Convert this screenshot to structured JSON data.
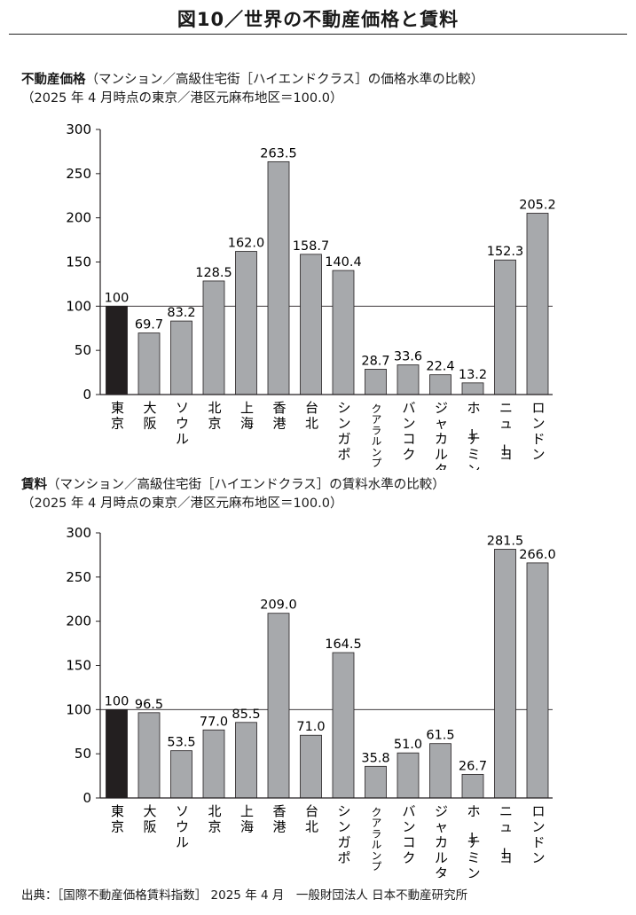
{
  "figure_title": "図10／世界の不動産価格と賃料",
  "source": "出典：［国際不動産価格賃料指数］ 2025 年 4 月　一般財団法人 日本不動産研究所",
  "colors": {
    "highlight_bar": "#231f20",
    "bar": "#a7a9ac",
    "axis": "#231f20",
    "reference_line": "#231f20"
  },
  "chart_data": [
    {
      "type": "bar",
      "title_lead": "不動産価格",
      "title_rest": "（マンション／高級住宅街［ハイエンドクラス］の価格水準の比較）",
      "subtitle": "（2025 年 4 月時点の東京／港区元麻布地区＝100.0）",
      "categories": [
        "東京",
        "大阪",
        "ソウル",
        "北京",
        "上海",
        "香港",
        "台北",
        "シンガポール",
        "クアラルンプール",
        "バンコク",
        "ジャカルタ",
        "ホーチミン",
        "ニューヨーク",
        "ロンドン"
      ],
      "value_labels": [
        "100",
        "69.7",
        "83.2",
        "128.5",
        "162.0",
        "263.5",
        "158.7",
        "140.4",
        "28.7",
        "33.6",
        "22.4",
        "13.2",
        "152.3",
        "205.2"
      ],
      "values": [
        100,
        69.7,
        83.2,
        128.5,
        162.0,
        263.5,
        158.7,
        140.4,
        28.7,
        33.6,
        22.4,
        13.2,
        152.3,
        205.2
      ],
      "yticks": [
        "0",
        "50",
        "100",
        "150",
        "200",
        "250",
        "300"
      ],
      "ylim": [
        0,
        300
      ],
      "reference_line": 100,
      "grid": false,
      "highlight_index": 0
    },
    {
      "type": "bar",
      "title_lead": "賃料",
      "title_rest": "（マンション／高級住宅街［ハイエンドクラス］の賃料水準の比較）",
      "subtitle": "（2025 年 4 月時点の東京／港区元麻布地区＝100.0）",
      "categories": [
        "東京",
        "大阪",
        "ソウル",
        "北京",
        "上海",
        "香港",
        "台北",
        "シンガポール",
        "クアラルンプール",
        "バンコク",
        "ジャカルタ",
        "ホーチミン",
        "ニューヨーク",
        "ロンドン"
      ],
      "value_labels": [
        "100",
        "96.5",
        "53.5",
        "77.0",
        "85.5",
        "209.0",
        "71.0",
        "164.5",
        "35.8",
        "51.0",
        "61.5",
        "26.7",
        "281.5",
        "266.0"
      ],
      "values": [
        100,
        96.5,
        53.5,
        77.0,
        85.5,
        209.0,
        71.0,
        164.5,
        35.8,
        51.0,
        61.5,
        26.7,
        281.5,
        266.0
      ],
      "yticks": [
        "0",
        "50",
        "100",
        "150",
        "200",
        "250",
        "300"
      ],
      "ylim": [
        0,
        300
      ],
      "reference_line": 100,
      "grid": false,
      "highlight_index": 0
    }
  ]
}
